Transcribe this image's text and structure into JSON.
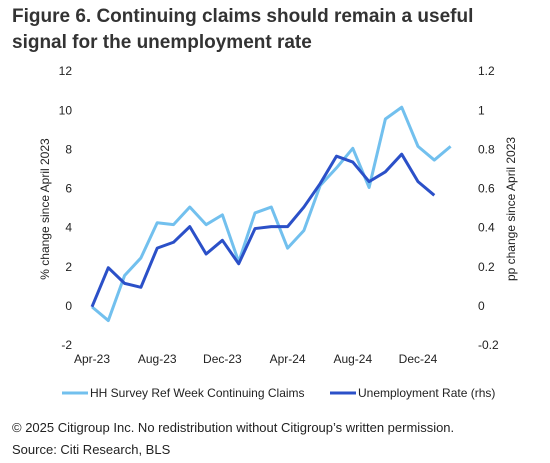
{
  "chart_data": {
    "type": "line",
    "title": "Figure 6. Continuing claims should remain a useful signal for the unemployment rate",
    "categories": [
      "Apr-23",
      null,
      null,
      null,
      "Aug-23",
      null,
      null,
      null,
      "Dec-23",
      null,
      null,
      null,
      "Apr-24",
      null,
      null,
      null,
      "Aug-24",
      null,
      null,
      null,
      "Dec-24",
      null,
      null
    ],
    "series": [
      {
        "name": "HH Survey Ref Week Continuing Claims",
        "color": "#72c0ee",
        "axis": "y",
        "values": [
          0,
          -0.7,
          1.6,
          2.5,
          4.3,
          4.2,
          5.1,
          4.2,
          4.7,
          2.3,
          4.8,
          5.1,
          3.0,
          3.9,
          6.2,
          7.1,
          8.1,
          6.1,
          9.6,
          10.2,
          8.2,
          7.5,
          8.2
        ]
      },
      {
        "name": "Unemployment Rate (rhs)",
        "color": "#2b50c8",
        "axis": "y2",
        "values": [
          0,
          0.2,
          0.12,
          0.1,
          0.3,
          0.33,
          0.41,
          0.27,
          0.34,
          0.22,
          0.4,
          0.41,
          0.41,
          0.51,
          0.63,
          0.77,
          0.74,
          0.64,
          0.69,
          0.78,
          0.64,
          0.57,
          null
        ]
      }
    ],
    "ylabel": "% change since April 2023",
    "y2label": "pp change since April 2023",
    "ylim": [
      -2,
      12
    ],
    "yticks": [
      -2,
      0,
      2,
      4,
      6,
      8,
      10,
      12
    ],
    "y2lim": [
      -0.2,
      1.2
    ],
    "y2ticks": [
      -0.2,
      0,
      0.2,
      0.4,
      0.6,
      0.8,
      1,
      1.2
    ],
    "grid": false,
    "legend": "bottom"
  },
  "footer": {
    "copyright": "© 2025 Citigroup Inc. No redistribution without Citigroup’s written permission.",
    "source": "Source: Citi Research, BLS"
  }
}
